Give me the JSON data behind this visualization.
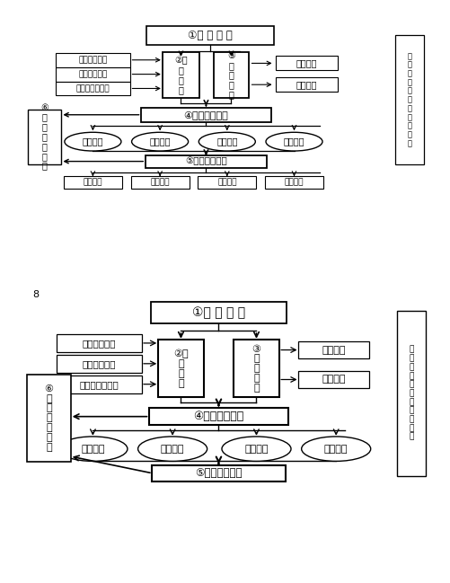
{
  "bg_color": "#ffffff",
  "diagram1": {
    "supply_text": "①供 求 理 论",
    "consumer_text": "②消\n费\n理\n论",
    "firm_text": "③\n厂\n商\n理\n论",
    "left_texts": [
      "基数效用理论",
      "序数效用理论",
      "显示性偏好理论"
    ],
    "right_texts": [
      "生产理论",
      "成本理论"
    ],
    "product_text": "④产品市场理论",
    "oval_texts": [
      "完全竞争",
      "垄断竞争",
      "寡头垄断",
      "完全垄断"
    ],
    "factor_text": "⑤要素市场理论",
    "factor_sub_texts": [
      "工资理论",
      "地租理论",
      "利息理论",
      "利润理论"
    ],
    "geq_text": "⑥\n一\n般\n均\n衡\n理\n论",
    "side_text": "微\n观\n经\n济\n分\n析\n的\n基\n本\n内\n容"
  },
  "diagram2": {
    "supply_text": "①供 求 理 论",
    "consumer_text": "②消\n费\n理\n论",
    "firm_text": "③\n厂\n商\n理\n论",
    "left_texts": [
      "基数效用理论",
      "序数效用理论",
      "显示性偏好理论"
    ],
    "right_texts": [
      "生产理论",
      "成本理论"
    ],
    "product_text": "④产品市场理论",
    "oval_texts": [
      "完全竞争",
      "垄断竞争",
      "寡头垄断",
      "完全垄断"
    ],
    "factor_text": "⑤要素市场理论",
    "geq_text": "⑥\n一\n般\n均\n衡\n理\n论",
    "side_text": "微\n观\n经\n济\n分\n析\n的\n基\n本\n内\n容"
  },
  "page_num": "8"
}
